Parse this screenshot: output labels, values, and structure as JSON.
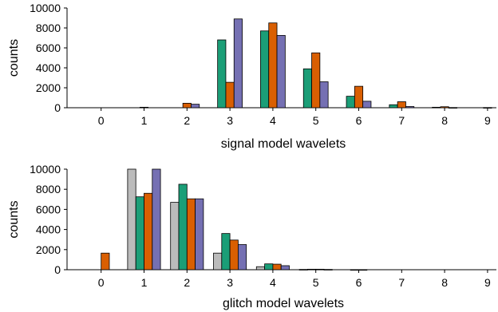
{
  "chart_data": [
    {
      "type": "bar",
      "xlabel": "signal model wavelets",
      "ylabel": "counts",
      "categories": [
        "0",
        "1",
        "2",
        "3",
        "4",
        "5",
        "6",
        "7",
        "8",
        "9"
      ],
      "ylim": [
        0,
        10000
      ],
      "yticks": [
        "0",
        "2000",
        "4000",
        "6000",
        "8000",
        "10000"
      ],
      "grid": false,
      "series": [
        {
          "color": "#1b9e77",
          "values": [
            0,
            0,
            0,
            6800,
            7700,
            3900,
            1150,
            300,
            50,
            0
          ]
        },
        {
          "color": "#d95f02",
          "values": [
            0,
            50,
            450,
            2550,
            8500,
            5500,
            2150,
            600,
            100,
            20
          ]
        },
        {
          "color": "#7570b3",
          "values": [
            0,
            0,
            350,
            8900,
            7250,
            2600,
            650,
            120,
            20,
            0
          ]
        }
      ]
    },
    {
      "type": "bar",
      "xlabel": "glitch model wavelets",
      "ylabel": "counts",
      "categories": [
        "0",
        "1",
        "2",
        "3",
        "4",
        "5",
        "6",
        "7",
        "8",
        "9"
      ],
      "ylim": [
        0,
        10000
      ],
      "yticks": [
        "0",
        "2000",
        "4000",
        "6000",
        "8000",
        "10000"
      ],
      "grid": false,
      "series": [
        {
          "color": "#bbbbbb",
          "values": [
            0,
            10000,
            6700,
            1650,
            300,
            30,
            0,
            0,
            0,
            0
          ]
        },
        {
          "color": "#1b9e77",
          "values": [
            0,
            7250,
            8500,
            3600,
            580,
            50,
            10,
            0,
            0,
            0
          ]
        },
        {
          "color": "#d95f02",
          "values": [
            1650,
            7600,
            7050,
            2950,
            550,
            50,
            10,
            0,
            0,
            0
          ]
        },
        {
          "color": "#7570b3",
          "values": [
            0,
            10000,
            7050,
            2500,
            400,
            30,
            0,
            0,
            0,
            0
          ]
        }
      ]
    }
  ]
}
